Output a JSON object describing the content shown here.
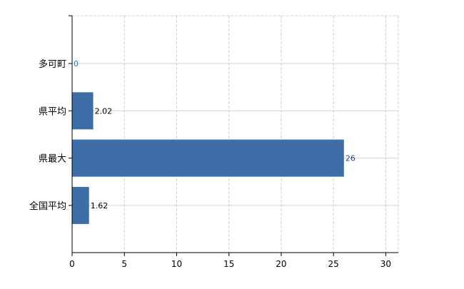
{
  "chart_data": {
    "type": "bar",
    "orientation": "horizontal",
    "categories": [
      "多可町",
      "県平均",
      "県最大",
      "全国平均"
    ],
    "values": [
      0,
      2.02,
      26,
      1.62
    ],
    "data_labels": [
      "0",
      "2.02",
      "26",
      "1.62"
    ],
    "x_ticks": [
      "0",
      "5",
      "10",
      "15",
      "20",
      "25",
      "30"
    ],
    "xlim": [
      0,
      31.2
    ],
    "title": "",
    "xlabel": "",
    "ylabel": "",
    "grid": true,
    "bar_color": "#3d6ea8",
    "label_colors": {
      "zero": "#1f78c8",
      "highlight": "#1a3f9a",
      "default": "#000000"
    }
  }
}
